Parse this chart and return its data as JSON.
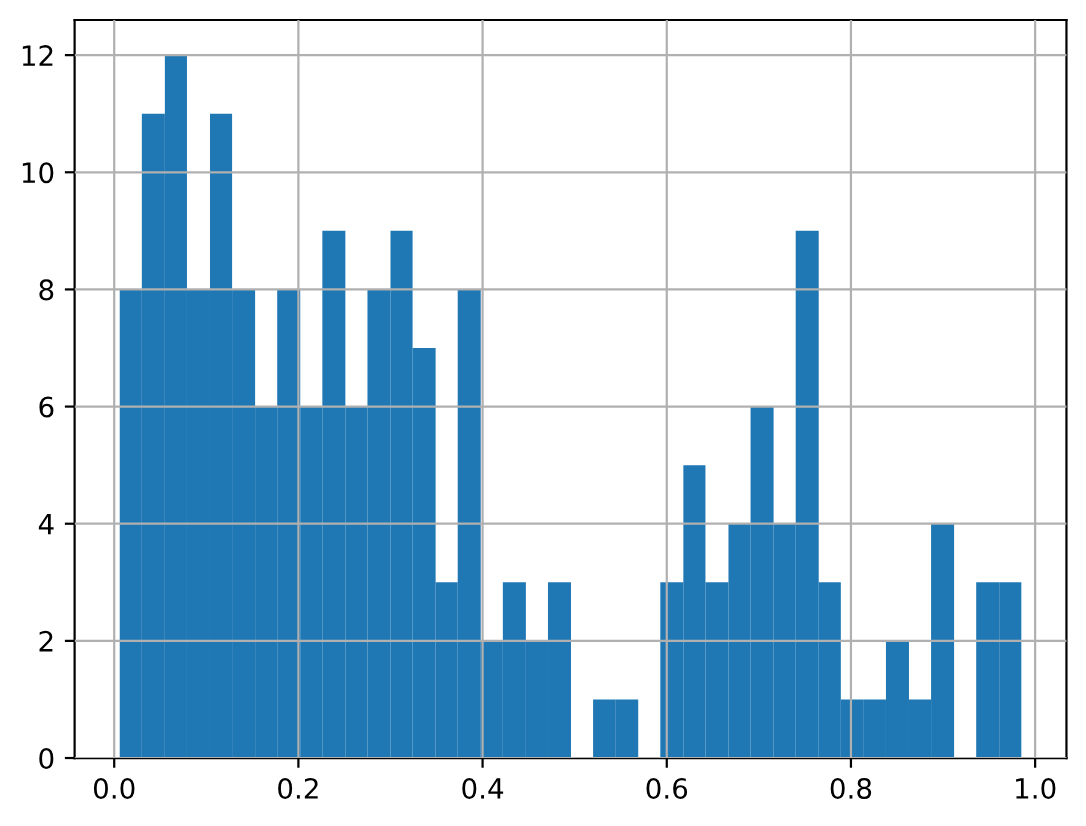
{
  "chart_data": {
    "type": "histogram",
    "color": "#1f77b4",
    "bins": [
      0.006,
      0.03,
      0.055,
      0.079,
      0.104,
      0.128,
      0.153,
      0.177,
      0.202,
      0.226,
      0.251,
      0.275,
      0.3,
      0.324,
      0.349,
      0.373,
      0.398,
      0.422,
      0.447,
      0.471,
      0.496,
      0.52,
      0.544,
      0.569,
      0.593,
      0.618,
      0.642,
      0.667,
      0.691,
      0.716,
      0.74,
      0.765,
      0.789,
      0.814,
      0.838,
      0.863,
      0.887,
      0.912,
      0.936,
      0.961,
      0.985
    ],
    "values": [
      8,
      11,
      12,
      8,
      11,
      8,
      6,
      8,
      6,
      9,
      6,
      8,
      9,
      7,
      3,
      8,
      2,
      3,
      2,
      3,
      0,
      1,
      1,
      0,
      3,
      5,
      3,
      4,
      6,
      4,
      9,
      3,
      1,
      1,
      2,
      1,
      4,
      0,
      3,
      3
    ],
    "xlim": [
      -0.043,
      1.034
    ],
    "ylim": [
      0,
      12.6
    ],
    "xticks": [
      {
        "value": 0.0,
        "label": "0.0"
      },
      {
        "value": 0.2,
        "label": "0.2"
      },
      {
        "value": 0.4,
        "label": "0.4"
      },
      {
        "value": 0.6,
        "label": "0.6"
      },
      {
        "value": 0.8,
        "label": "0.8"
      },
      {
        "value": 1.0,
        "label": "1.0"
      }
    ],
    "yticks": [
      0,
      2,
      4,
      6,
      8,
      10,
      12
    ],
    "grid": true
  }
}
